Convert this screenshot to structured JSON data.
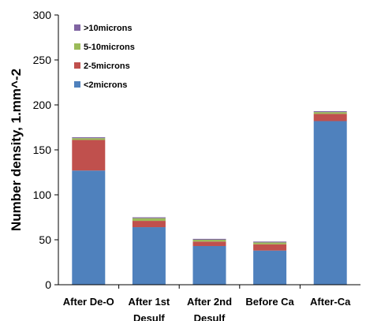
{
  "chart_data": {
    "type": "bar",
    "stacked": true,
    "categories": [
      [
        "After De-O"
      ],
      [
        "After 1st",
        "Desulf"
      ],
      [
        "After 2nd",
        "Desulf"
      ],
      [
        "Before Ca"
      ],
      [
        "After-Ca"
      ]
    ],
    "series": [
      {
        "name": "<2microns",
        "color": "#4f81bd",
        "values": [
          127,
          64,
          43,
          38,
          182
        ]
      },
      {
        "name": "2-5microns",
        "color": "#c0504d",
        "values": [
          34,
          7,
          5,
          7,
          8
        ]
      },
      {
        "name": "5-10microns",
        "color": "#9bbb59",
        "values": [
          2,
          3,
          2,
          2,
          2
        ]
      },
      {
        "name": ">10microns",
        "color": "#8064a2",
        "values": [
          1,
          1,
          1,
          1,
          1
        ]
      }
    ],
    "ylabel": "Number density, 1.mm^-2",
    "xlabel": "",
    "ylim": [
      0,
      300
    ],
    "yticks": [
      0,
      50,
      100,
      150,
      200,
      250,
      300
    ],
    "grid": false,
    "legend": {
      "position": "top-left",
      "order": [
        ">10microns",
        "5-10microns",
        "2-5microns",
        "<2microns"
      ]
    }
  }
}
